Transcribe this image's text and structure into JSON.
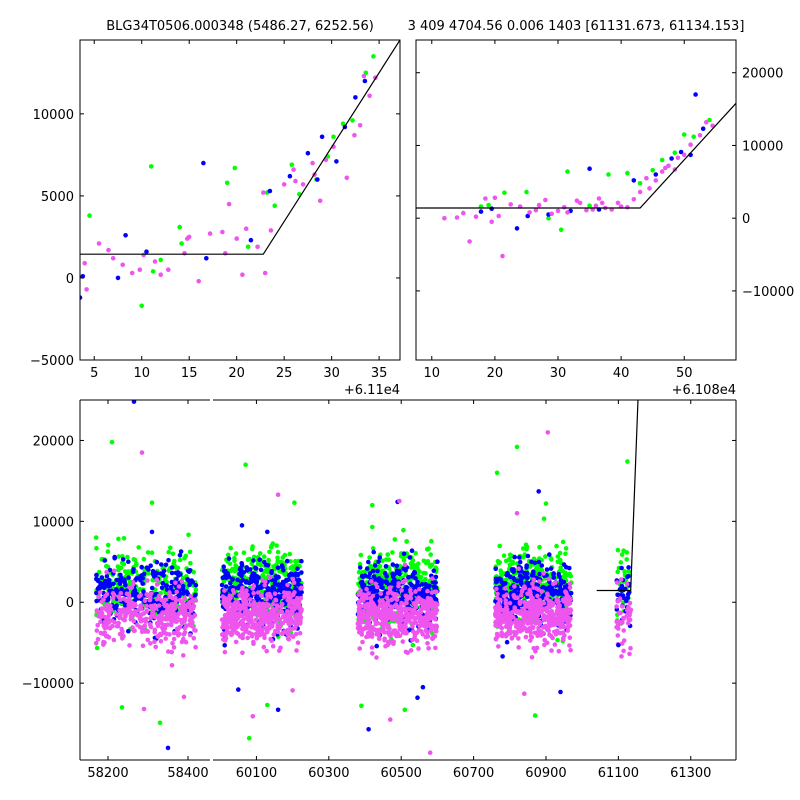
{
  "figure": {
    "title_left": "BLG34T0506.000348 (5486.27, 6252.56)",
    "title_right": "3 409 4704.56 0.006 1403 [61131.673, 61134.153]"
  },
  "colors": {
    "green": "#00ff00",
    "blue": "#0000ff",
    "magenta": "#ee55ee",
    "line": "#000000"
  },
  "chart_data": [
    {
      "id": "panel-top-left",
      "type": "scatter",
      "title": "BLG34T0506.000348 (5486.27, 6252.56)",
      "xlim": [
        3.5,
        37.2
      ],
      "ylim": [
        -5000,
        14500
      ],
      "xticks": [
        5,
        10,
        15,
        20,
        25,
        30,
        35
      ],
      "yticks": [
        -5000,
        0,
        5000,
        10000
      ],
      "x_offset_label": "+6.11e4",
      "model_line": {
        "x": [
          3.5,
          22.8,
          37.2
        ],
        "y": [
          1450,
          1450,
          14500
        ]
      },
      "series": [
        {
          "name": "green",
          "color": "#00ff00",
          "points": [
            [
              4.5,
              3800
            ],
            [
              10.0,
              -1700
            ],
            [
              11.0,
              6800
            ],
            [
              11.2,
              400
            ],
            [
              12.0,
              1100
            ],
            [
              14.0,
              3100
            ],
            [
              14.2,
              2100
            ],
            [
              19.0,
              5800
            ],
            [
              19.8,
              6700
            ],
            [
              21.2,
              1900
            ],
            [
              23.2,
              5200
            ],
            [
              24.0,
              4400
            ],
            [
              25.8,
              6900
            ],
            [
              26.6,
              5100
            ],
            [
              28.4,
              6000
            ],
            [
              29.6,
              7400
            ],
            [
              30.2,
              8600
            ],
            [
              31.2,
              9400
            ],
            [
              32.2,
              9600
            ],
            [
              33.6,
              12500
            ],
            [
              34.4,
              13500
            ]
          ]
        },
        {
          "name": "blue",
          "color": "#0000ff",
          "points": [
            [
              3.5,
              -1200
            ],
            [
              3.8,
              100
            ],
            [
              7.5,
              0
            ],
            [
              8.3,
              2600
            ],
            [
              10.5,
              1600
            ],
            [
              16.5,
              7000
            ],
            [
              16.8,
              1200
            ],
            [
              21.5,
              2300
            ],
            [
              23.5,
              5300
            ],
            [
              25.6,
              6200
            ],
            [
              27.5,
              7600
            ],
            [
              28.5,
              6000
            ],
            [
              29.0,
              8600
            ],
            [
              30.5,
              7100
            ],
            [
              31.4,
              9200
            ],
            [
              32.5,
              11000
            ],
            [
              33.5,
              12000
            ]
          ]
        },
        {
          "name": "magenta",
          "color": "#ee55ee",
          "points": [
            [
              4.0,
              900
            ],
            [
              4.2,
              -700
            ],
            [
              5.5,
              2100
            ],
            [
              6.5,
              1700
            ],
            [
              7.0,
              1200
            ],
            [
              8.0,
              800
            ],
            [
              9.0,
              300
            ],
            [
              9.8,
              500
            ],
            [
              10.2,
              1400
            ],
            [
              11.4,
              1000
            ],
            [
              12.0,
              200
            ],
            [
              12.8,
              500
            ],
            [
              14.5,
              1500
            ],
            [
              14.8,
              2400
            ],
            [
              15.0,
              2500
            ],
            [
              16.0,
              -200
            ],
            [
              17.2,
              2700
            ],
            [
              18.5,
              2800
            ],
            [
              18.8,
              1500
            ],
            [
              19.2,
              4500
            ],
            [
              20.0,
              2400
            ],
            [
              20.6,
              200
            ],
            [
              21.0,
              3000
            ],
            [
              22.2,
              1900
            ],
            [
              22.8,
              5200
            ],
            [
              23.0,
              300
            ],
            [
              23.6,
              2900
            ],
            [
              25.0,
              5700
            ],
            [
              26.0,
              6600
            ],
            [
              26.2,
              5900
            ],
            [
              27.0,
              5700
            ],
            [
              28.0,
              7000
            ],
            [
              28.2,
              6300
            ],
            [
              28.8,
              4700
            ],
            [
              29.4,
              7200
            ],
            [
              30.2,
              8000
            ],
            [
              31.6,
              6100
            ],
            [
              32.4,
              8700
            ],
            [
              33.0,
              9300
            ],
            [
              33.4,
              12300
            ],
            [
              34.0,
              11100
            ],
            [
              34.6,
              12200
            ]
          ]
        }
      ]
    },
    {
      "id": "panel-top-right",
      "type": "scatter",
      "xlim": [
        7.5,
        58.2
      ],
      "ylim": [
        -19500,
        24500
      ],
      "xticks": [
        10,
        20,
        30,
        40,
        50
      ],
      "yticks": [
        -10000,
        0,
        10000,
        20000
      ],
      "x_offset_label": "+6.108e4",
      "model_line": {
        "x": [
          7.5,
          43.0,
          58.2
        ],
        "y": [
          1400,
          1400,
          15800
        ]
      },
      "series": [
        {
          "name": "green",
          "color": "#00ff00",
          "points": [
            [
              17.8,
              1600
            ],
            [
              19.0,
              1800
            ],
            [
              21.5,
              3500
            ],
            [
              25.0,
              3600
            ],
            [
              28.5,
              0
            ],
            [
              30.5,
              -1600
            ],
            [
              31.5,
              6400
            ],
            [
              35.0,
              1700
            ],
            [
              38.0,
              6000
            ],
            [
              41.0,
              6200
            ],
            [
              43.0,
              4800
            ],
            [
              45.0,
              6600
            ],
            [
              46.5,
              8000
            ],
            [
              48.5,
              9000
            ],
            [
              50.0,
              11500
            ],
            [
              51.5,
              11200
            ],
            [
              54.0,
              13500
            ]
          ]
        },
        {
          "name": "blue",
          "color": "#0000ff",
          "points": [
            [
              17.8,
              900
            ],
            [
              19.5,
              1300
            ],
            [
              23.5,
              -1400
            ],
            [
              25.2,
              300
            ],
            [
              28.5,
              500
            ],
            [
              32.0,
              1000
            ],
            [
              35.0,
              6800
            ],
            [
              36.5,
              1200
            ],
            [
              42.0,
              5200
            ],
            [
              45.5,
              6000
            ],
            [
              48.0,
              8200
            ],
            [
              49.5,
              9100
            ],
            [
              51.0,
              8700
            ],
            [
              51.8,
              17000
            ],
            [
              53.0,
              12300
            ]
          ]
        },
        {
          "name": "magenta",
          "color": "#ee55ee",
          "points": [
            [
              12.0,
              0
            ],
            [
              14.0,
              100
            ],
            [
              15.0,
              700
            ],
            [
              16.0,
              -3200
            ],
            [
              17.0,
              200
            ],
            [
              18.5,
              2700
            ],
            [
              19.5,
              -500
            ],
            [
              20.0,
              2800
            ],
            [
              20.6,
              300
            ],
            [
              21.2,
              -5200
            ],
            [
              22.5,
              1900
            ],
            [
              24.0,
              1600
            ],
            [
              25.5,
              800
            ],
            [
              26.5,
              1100
            ],
            [
              27.0,
              1800
            ],
            [
              28.0,
              2500
            ],
            [
              29.0,
              600
            ],
            [
              30.0,
              1000
            ],
            [
              31.0,
              1500
            ],
            [
              31.5,
              800
            ],
            [
              33.0,
              2400
            ],
            [
              33.5,
              2100
            ],
            [
              34.5,
              1100
            ],
            [
              35.5,
              1200
            ],
            [
              36.0,
              1700
            ],
            [
              36.5,
              2700
            ],
            [
              37.0,
              2100
            ],
            [
              37.5,
              1400
            ],
            [
              38.5,
              1200
            ],
            [
              39.5,
              2100
            ],
            [
              40.0,
              1600
            ],
            [
              41.0,
              1500
            ],
            [
              42.0,
              2600
            ],
            [
              43.0,
              3600
            ],
            [
              44.0,
              5500
            ],
            [
              44.5,
              4100
            ],
            [
              45.5,
              5200
            ],
            [
              46.5,
              6400
            ],
            [
              47.0,
              6900
            ],
            [
              47.5,
              7200
            ],
            [
              48.5,
              6700
            ],
            [
              49.0,
              8300
            ],
            [
              50.0,
              8700
            ],
            [
              51.0,
              10100
            ],
            [
              52.5,
              11400
            ],
            [
              53.5,
              13200
            ],
            [
              54.5,
              12700
            ]
          ]
        }
      ]
    },
    {
      "id": "panel-bottom",
      "type": "scatter",
      "ylim": [
        -19500,
        25000
      ],
      "yticks": [
        -10000,
        0,
        10000,
        20000
      ],
      "x_segments": [
        {
          "xlim": [
            58130,
            58455
          ],
          "xticks": [
            58200,
            58400
          ]
        },
        {
          "xlim": [
            59980,
            61425
          ],
          "xticks": [
            60100,
            60300,
            60500,
            60700,
            60900,
            61100,
            61300
          ]
        }
      ],
      "clusters": [
        {
          "segment": 0,
          "x_range": [
            58170,
            58420
          ],
          "n": 350,
          "outliers": [
            [
              58210,
              19800
            ],
            [
              58265,
              24800
            ],
            [
              58285,
              18500
            ],
            [
              58310,
              12300
            ],
            [
              58310,
              8700
            ],
            [
              58290,
              -13200
            ],
            [
              58235,
              -13000
            ],
            [
              58380,
              5800
            ],
            [
              58390,
              -11700
            ],
            [
              58330,
              -14900
            ],
            [
              58350,
              -18000
            ],
            [
              58360,
              -7800
            ],
            [
              58240,
              7900
            ]
          ]
        },
        {
          "segment": 1,
          "x_range": [
            60005,
            60225
          ],
          "n": 450,
          "outliers": [
            [
              60070,
              17000
            ],
            [
              60130,
              8700
            ],
            [
              60160,
              13300
            ],
            [
              60205,
              12300
            ],
            [
              60050,
              -10800
            ],
            [
              60090,
              -14100
            ],
            [
              60130,
              -12700
            ],
            [
              60160,
              -13300
            ],
            [
              60200,
              -10900
            ],
            [
              60080,
              -16800
            ],
            [
              60060,
              9500
            ]
          ]
        },
        {
          "segment": 1,
          "x_range": [
            60380,
            60600
          ],
          "n": 450,
          "outliers": [
            [
              60420,
              12000
            ],
            [
              60490,
              12400
            ],
            [
              60495,
              12500
            ],
            [
              60390,
              -12800
            ],
            [
              60410,
              -15700
            ],
            [
              60470,
              -14500
            ],
            [
              60510,
              -13300
            ],
            [
              60545,
              -11800
            ],
            [
              60580,
              -18600
            ],
            [
              60420,
              9300
            ],
            [
              60560,
              -10500
            ]
          ]
        },
        {
          "segment": 1,
          "x_range": [
            60760,
            60970
          ],
          "n": 450,
          "outliers": [
            [
              60820,
              19200
            ],
            [
              60880,
              13700
            ],
            [
              60905,
              21000
            ],
            [
              60765,
              16000
            ],
            [
              60780,
              -6700
            ],
            [
              60840,
              -11300
            ],
            [
              60870,
              -14000
            ],
            [
              60940,
              -11100
            ],
            [
              60820,
              11000
            ],
            [
              60900,
              12200
            ]
          ]
        },
        {
          "segment": 1,
          "x_range": [
            61095,
            61135
          ],
          "n": 40,
          "outliers": [
            [
              61125,
              17400
            ],
            [
              61100,
              -5300
            ],
            [
              61095,
              -3100
            ]
          ]
        }
      ],
      "model_line": {
        "segment": 1,
        "x": [
          61040,
          61134,
          61155
        ],
        "y": [
          1450,
          1450,
          26000
        ]
      }
    }
  ]
}
